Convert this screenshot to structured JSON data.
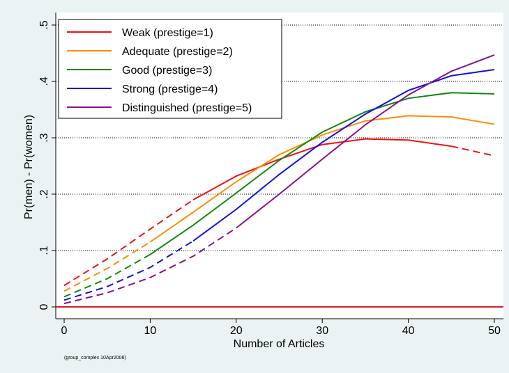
{
  "chart_data": {
    "type": "line",
    "xlabel": "Number of Articles",
    "ylabel": "Pr(men) - Pr(women)",
    "note": "(group_complex 10Apr2006)",
    "x": [
      0,
      5,
      10,
      15,
      20,
      25,
      30,
      35,
      40,
      45,
      50
    ],
    "xlim": [
      0,
      50
    ],
    "xticks": [
      0,
      10,
      20,
      30,
      40,
      50
    ],
    "ylim": [
      0,
      0.5
    ],
    "yticks": [
      0,
      {
        "value": 0.1,
        "label": ".1"
      },
      {
        "value": 0.2,
        "label": ".2"
      },
      {
        "value": 0.3,
        "label": ".3"
      },
      {
        "value": 0.4,
        "label": ".4"
      },
      {
        "value": 0.5,
        "label": ".5"
      }
    ],
    "grid": true,
    "legend_position": "top-left",
    "yline": {
      "value": 0,
      "color": "#cc2222"
    },
    "series": [
      {
        "name": "Weak (prestige=1)",
        "color": "#ee1111",
        "values": [
          0.038,
          0.085,
          0.138,
          0.19,
          0.232,
          0.262,
          0.288,
          0.298,
          0.296,
          0.285,
          0.268
        ],
        "segment_styles": [
          "dashed",
          "dashed",
          "dashed",
          "solid",
          "solid",
          "solid",
          "solid",
          "solid",
          "solid",
          "dashed"
        ]
      },
      {
        "name": "Adequate (prestige=2)",
        "color": "#ff8c00",
        "values": [
          0.028,
          0.068,
          0.115,
          0.168,
          0.222,
          0.27,
          0.305,
          0.33,
          0.339,
          0.337,
          0.324
        ],
        "segment_styles": [
          "dashed",
          "dashed",
          "solid",
          "solid",
          "solid",
          "solid",
          "solid",
          "solid",
          "solid",
          "solid"
        ]
      },
      {
        "name": "Good (prestige=3)",
        "color": "#118811",
        "values": [
          0.018,
          0.05,
          0.093,
          0.145,
          0.202,
          0.26,
          0.31,
          0.346,
          0.37,
          0.38,
          0.378
        ],
        "segment_styles": [
          "dashed",
          "dashed",
          "solid",
          "solid",
          "solid",
          "solid",
          "solid",
          "solid",
          "solid",
          "solid"
        ]
      },
      {
        "name": "Strong (prestige=4)",
        "color": "#1111dd",
        "values": [
          0.012,
          0.036,
          0.07,
          0.117,
          0.173,
          0.235,
          0.292,
          0.342,
          0.384,
          0.41,
          0.421
        ],
        "segment_styles": [
          "dashed",
          "dashed",
          "dashed",
          "solid",
          "solid",
          "solid",
          "solid",
          "solid",
          "solid",
          "solid"
        ]
      },
      {
        "name": "Distinguished (prestige=5)",
        "color": "#881188",
        "values": [
          0.006,
          0.025,
          0.052,
          0.09,
          0.14,
          0.2,
          0.262,
          0.323,
          0.376,
          0.418,
          0.447
        ],
        "segment_styles": [
          "dashed",
          "dashed",
          "dashed",
          "dashed",
          "solid",
          "solid",
          "solid",
          "solid",
          "solid",
          "solid"
        ]
      }
    ]
  }
}
